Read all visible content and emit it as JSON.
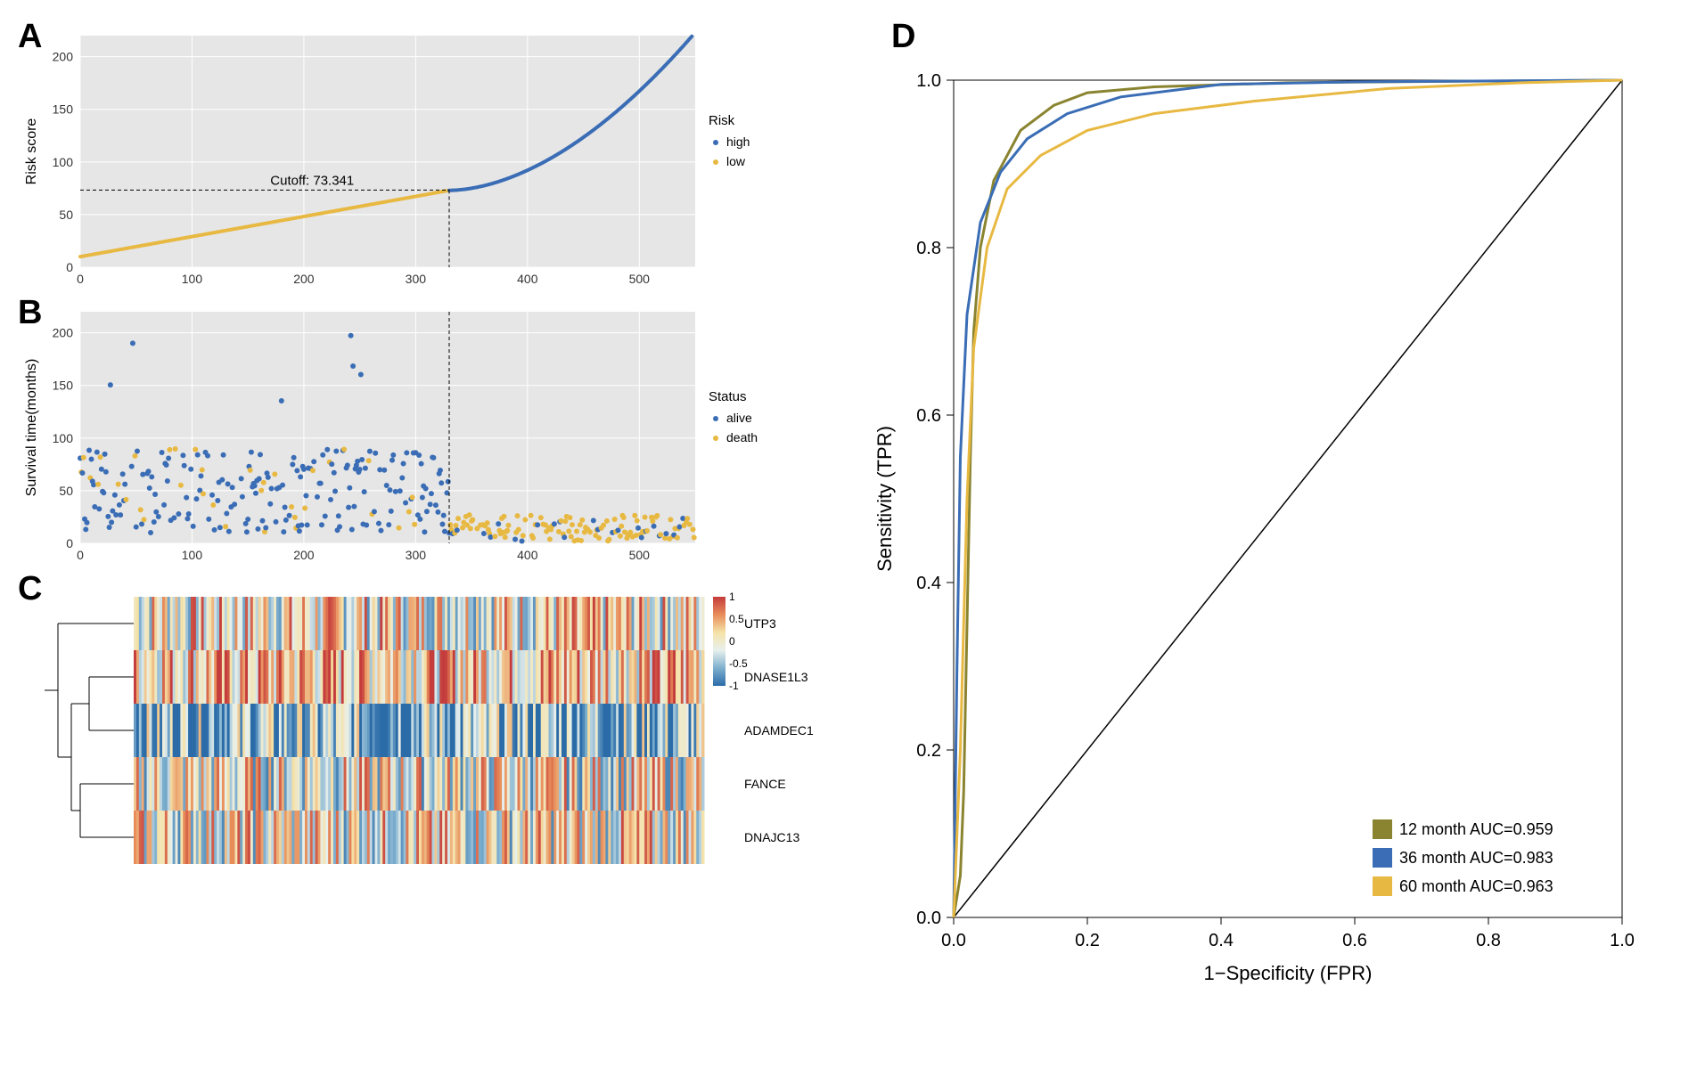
{
  "panelA": {
    "label": "A",
    "type": "scatter",
    "xlim": [
      0,
      550
    ],
    "ylim": [
      0,
      220
    ],
    "xticks": [
      0,
      100,
      200,
      300,
      400,
      500
    ],
    "yticks": [
      0,
      50,
      100,
      150,
      200
    ],
    "ylabel": "Risk score",
    "cutoff_x": 330,
    "cutoff_y": 73.341,
    "cutoff_label": "Cutoff: 73.341",
    "legend_title": "Risk",
    "legend_items": [
      {
        "label": "high",
        "color": "#3a6db5"
      },
      {
        "label": "low",
        "color": "#e8b942"
      }
    ],
    "background_color": "#e6e6e6",
    "grid_color": "#ffffff",
    "point_size": 2,
    "label_fontsize": 16,
    "tick_fontsize": 14
  },
  "panelB": {
    "label": "B",
    "type": "scatter",
    "xlim": [
      0,
      550
    ],
    "ylim": [
      0,
      220
    ],
    "xticks": [
      0,
      100,
      200,
      300,
      400,
      500
    ],
    "yticks": [
      0,
      50,
      100,
      150,
      200
    ],
    "ylabel": "Survival time(months)",
    "cutoff_x": 330,
    "legend_title": "Status",
    "legend_items": [
      {
        "label": "alive",
        "color": "#3a6db5"
      },
      {
        "label": "death",
        "color": "#e8b942"
      }
    ],
    "background_color": "#e6e6e6",
    "grid_color": "#ffffff",
    "point_size": 3,
    "label_fontsize": 16,
    "tick_fontsize": 14
  },
  "panelC": {
    "label": "C",
    "type": "heatmap",
    "rows": [
      "UTP3",
      "DNASE1L3",
      "ADAMDEC1",
      "FANCE",
      "DNAJC13"
    ],
    "ncols": 550,
    "colorscale": {
      "min": -1,
      "max": 1,
      "colors": [
        "#2b6ca8",
        "#7fb0cf",
        "#e8f0ed",
        "#f5e2a8",
        "#e88c5a",
        "#c43c3c"
      ]
    },
    "colorbar_ticks": [
      -1,
      -0.5,
      0,
      0.5,
      1
    ],
    "colorbar_labels": [
      "-1",
      "-0.5",
      "0",
      "0.5",
      "1"
    ],
    "row_label_fontsize": 14,
    "dendro_color": "#000000"
  },
  "panelD": {
    "label": "D",
    "type": "roc",
    "xlim": [
      0,
      1
    ],
    "ylim": [
      0,
      1
    ],
    "xticks": [
      0.0,
      0.2,
      0.4,
      0.6,
      0.8,
      1.0
    ],
    "yticks": [
      0.0,
      0.2,
      0.4,
      0.6,
      0.8,
      1.0
    ],
    "xlabel": "1−Specificity (FPR)",
    "ylabel": "Sensitivity (TPR)",
    "diagonal_color": "#000000",
    "line_width": 3,
    "curves": [
      {
        "label": "12 month AUC=0.959",
        "color": "#8a8430",
        "points": [
          [
            0,
            0
          ],
          [
            0.01,
            0.05
          ],
          [
            0.015,
            0.15
          ],
          [
            0.02,
            0.35
          ],
          [
            0.025,
            0.55
          ],
          [
            0.03,
            0.7
          ],
          [
            0.04,
            0.8
          ],
          [
            0.06,
            0.88
          ],
          [
            0.1,
            0.94
          ],
          [
            0.15,
            0.97
          ],
          [
            0.2,
            0.985
          ],
          [
            0.3,
            0.992
          ],
          [
            0.5,
            0.997
          ],
          [
            0.8,
            0.999
          ],
          [
            1.0,
            1.0
          ]
        ]
      },
      {
        "label": "36 month AUC=0.983",
        "color": "#3a6db5",
        "points": [
          [
            0,
            0
          ],
          [
            0.005,
            0.3
          ],
          [
            0.01,
            0.55
          ],
          [
            0.02,
            0.72
          ],
          [
            0.04,
            0.83
          ],
          [
            0.07,
            0.89
          ],
          [
            0.11,
            0.93
          ],
          [
            0.17,
            0.96
          ],
          [
            0.25,
            0.98
          ],
          [
            0.4,
            0.995
          ],
          [
            0.6,
            0.998
          ],
          [
            1.0,
            1.0
          ]
        ]
      },
      {
        "label": "60 month AUC=0.963",
        "color": "#e8b942",
        "points": [
          [
            0,
            0
          ],
          [
            0.01,
            0.2
          ],
          [
            0.02,
            0.5
          ],
          [
            0.03,
            0.68
          ],
          [
            0.05,
            0.8
          ],
          [
            0.08,
            0.87
          ],
          [
            0.13,
            0.91
          ],
          [
            0.2,
            0.94
          ],
          [
            0.3,
            0.96
          ],
          [
            0.45,
            0.975
          ],
          [
            0.65,
            0.99
          ],
          [
            0.85,
            0.997
          ],
          [
            1.0,
            1.0
          ]
        ]
      }
    ],
    "background_color": "#ffffff",
    "axis_color": "#000000",
    "label_fontsize": 22,
    "tick_fontsize": 20,
    "legend_fontsize": 18
  }
}
